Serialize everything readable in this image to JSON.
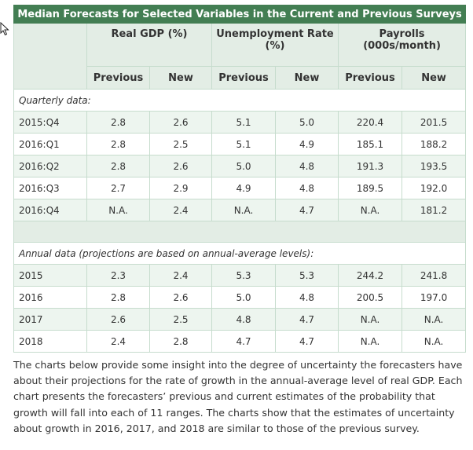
{
  "table": {
    "title": "Median Forecasts for Selected Variables in the Current and Previous Surveys",
    "groups": [
      "Real GDP (%)",
      "Unemployment Rate (%)",
      "Payrolls (000s/month)"
    ],
    "subheaders": [
      "Previous",
      "New",
      "Previous",
      "New",
      "Previous",
      "New"
    ],
    "quarterly_label": "Quarterly data:",
    "quarterly": [
      {
        "label": "2015:Q4",
        "values": [
          "2.8",
          "2.6",
          "5.1",
          "5.0",
          "220.4",
          "201.5"
        ]
      },
      {
        "label": "2016:Q1",
        "values": [
          "2.8",
          "2.5",
          "5.1",
          "4.9",
          "185.1",
          "188.2"
        ]
      },
      {
        "label": "2016:Q2",
        "values": [
          "2.8",
          "2.6",
          "5.0",
          "4.8",
          "191.3",
          "193.5"
        ]
      },
      {
        "label": "2016:Q3",
        "values": [
          "2.7",
          "2.9",
          "4.9",
          "4.8",
          "189.5",
          "192.0"
        ]
      },
      {
        "label": "2016:Q4",
        "values": [
          "N.A.",
          "2.4",
          "N.A.",
          "4.7",
          "N.A.",
          "181.2"
        ]
      }
    ],
    "annual_label": "Annual data (projections are based on annual-average levels):",
    "annual": [
      {
        "label": "2015",
        "values": [
          "2.3",
          "2.4",
          "5.3",
          "5.3",
          "244.2",
          "241.8"
        ]
      },
      {
        "label": "2016",
        "values": [
          "2.8",
          "2.6",
          "5.0",
          "4.8",
          "200.5",
          "197.0"
        ]
      },
      {
        "label": "2017",
        "values": [
          "2.6",
          "2.5",
          "4.8",
          "4.7",
          "N.A.",
          "N.A."
        ]
      },
      {
        "label": "2018",
        "values": [
          "2.4",
          "2.8",
          "4.7",
          "4.7",
          "N.A.",
          "N.A."
        ]
      }
    ]
  },
  "paragraph": "The charts below provide some insight into the degree of uncertainty the forecasters have about their projections for the rate of growth in the annual-average level of real GDP. Each chart presents the forecasters’ previous and current estimates of the probability that growth will fall into each of 11 ranges. The charts show that the estimates of uncertainty about growth in 2016, 2017, and 2018 are similar to those of the previous survey.",
  "colors": {
    "header": "#437e53",
    "header_light": "#e3ede5",
    "row_alt": "#edf5ef"
  },
  "icons": {
    "cursor": "mouse-pointer-icon"
  }
}
